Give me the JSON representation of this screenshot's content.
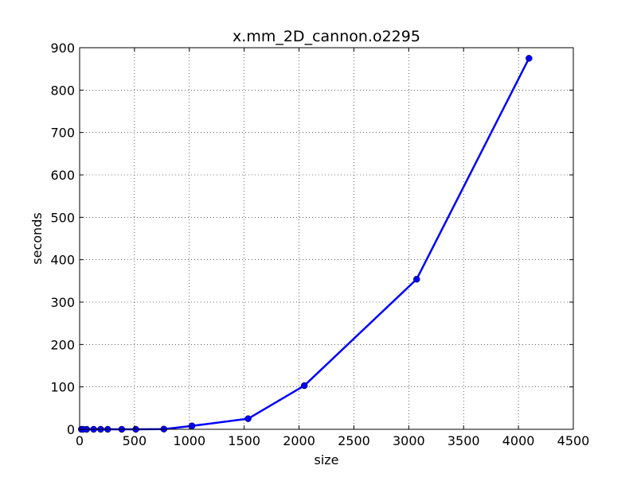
{
  "chart_data": {
    "type": "line",
    "title": "x.mm_2D_cannon.o2295",
    "xlabel": "size",
    "ylabel": "seconds",
    "xlim": [
      0,
      4500
    ],
    "ylim": [
      0,
      900
    ],
    "xticks": [
      0,
      500,
      1000,
      1500,
      2000,
      2500,
      3000,
      3500,
      4000,
      4500
    ],
    "yticks": [
      0,
      100,
      200,
      300,
      400,
      500,
      600,
      700,
      800,
      900
    ],
    "grid": true,
    "line_color": "#0000ff",
    "series": [
      {
        "x": [
          16,
          32,
          64,
          128,
          192,
          256,
          384,
          512,
          768,
          1024,
          1536,
          2048,
          3072,
          4096
        ],
        "values": [
          0,
          0,
          0,
          0,
          0,
          0,
          0,
          0,
          0.5,
          8,
          25,
          103,
          354,
          875
        ]
      }
    ]
  }
}
